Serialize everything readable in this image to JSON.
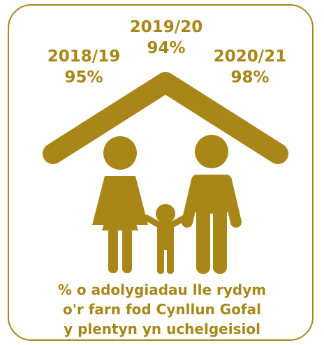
{
  "stats": [
    {
      "year": "2018/19",
      "value": "95%"
    },
    {
      "year": "2019/20",
      "value": "94%"
    },
    {
      "year": "2020/21",
      "value": "98%"
    }
  ],
  "caption": [
    "% o adolygiadau lle rydym",
    "o'r farn fod Cynllun Gofal",
    "y plentyn yn uchelgeisiol"
  ],
  "colors": {
    "accent": "#A88718"
  },
  "icons": [
    "house-roof-icon",
    "family-icon"
  ]
}
